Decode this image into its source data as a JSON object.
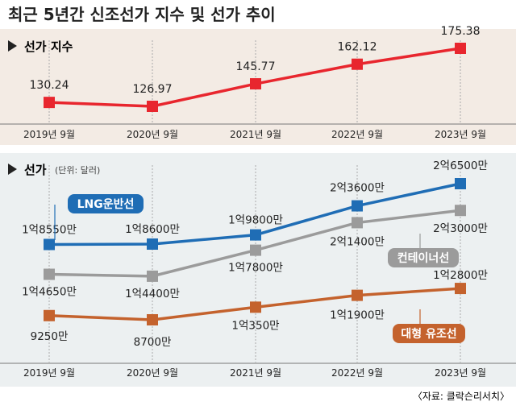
{
  "title": "최근 5년간 신조선가 지수 및 선가 추이",
  "source": "〈자료: 클락슨리서치〉",
  "colors": {
    "top_bg": "#f3ebe4",
    "bottom_bg": "#ecf0f1",
    "index_line": "#e8262e",
    "lng": "#1f6db5",
    "container": "#9b9b9b",
    "bulk": "#c4622d",
    "text": "#222222",
    "grid": "#aaaaaa"
  },
  "chart_data": [
    {
      "type": "line",
      "title": "선가 지수",
      "categories": [
        "2019년 9월",
        "2020년 9월",
        "2021년 9월",
        "2022년 9월",
        "2023년 9월"
      ],
      "series": [
        {
          "values": [
            130.24,
            126.97,
            145.77,
            162.12,
            175.38
          ],
          "labels": [
            "130.24",
            "126.97",
            "145.77",
            "162.12",
            "175.38"
          ]
        }
      ],
      "ylim": [
        120,
        180
      ],
      "grid": "vertical dotted"
    },
    {
      "type": "line",
      "title": "선가",
      "unit": "(단위: 달러)",
      "categories": [
        "2019년 9월",
        "2020년 9월",
        "2021년 9월",
        "2022년 9월",
        "2023년 9월"
      ],
      "series": [
        {
          "name": "LNG운반선",
          "values": [
            185500000,
            186000000,
            198000000,
            236000000,
            265000000
          ],
          "labels": [
            "1억8550만",
            "1억8600만",
            "1억9800만",
            "2억3600만",
            "2억6500만"
          ]
        },
        {
          "name": "컨테이너선",
          "values": [
            146500000,
            144000000,
            178000000,
            214000000,
            230000000
          ],
          "labels": [
            "1억4650만",
            "1억4400만",
            "1억7800만",
            "2억1400만",
            "2억3000만"
          ]
        },
        {
          "name": "대형 유조선",
          "values": [
            92500000,
            87000000,
            103500000,
            119000000,
            128000000
          ],
          "labels": [
            "9250만",
            "8700만",
            "1억350만",
            "1억1900만",
            "1억2800만"
          ]
        }
      ],
      "ylim": [
        60000000,
        290000000
      ],
      "grid": "vertical dotted"
    }
  ]
}
